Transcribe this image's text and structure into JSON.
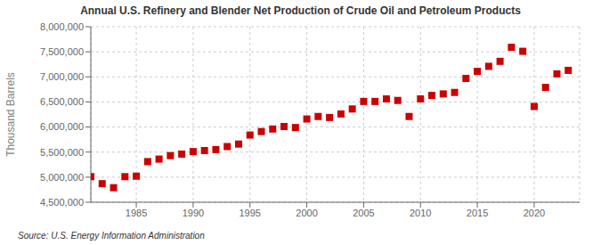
{
  "chart_data": {
    "type": "scatter",
    "title": "Annual U.S. Refinery and Blender Net Production of Crude Oil and Petroleum Products",
    "ylabel": "Thousand Barrels",
    "source": "Source: U.S. Energy Information Administration",
    "color": "#cc0000",
    "marker": "square",
    "grid": true,
    "x": [
      1981,
      1982,
      1983,
      1984,
      1985,
      1986,
      1987,
      1988,
      1989,
      1990,
      1991,
      1992,
      1993,
      1994,
      1995,
      1996,
      1997,
      1998,
      1999,
      2000,
      2001,
      2002,
      2003,
      2004,
      2005,
      2006,
      2007,
      2008,
      2009,
      2010,
      2011,
      2012,
      2013,
      2014,
      2015,
      2016,
      2017,
      2018,
      2019,
      2020,
      2021,
      2022,
      2023
    ],
    "values": [
      5010000,
      4870000,
      4790000,
      5010000,
      5020000,
      5310000,
      5360000,
      5430000,
      5460000,
      5510000,
      5530000,
      5550000,
      5610000,
      5660000,
      5840000,
      5910000,
      5960000,
      6010000,
      5990000,
      6160000,
      6210000,
      6190000,
      6260000,
      6360000,
      6510000,
      6510000,
      6560000,
      6530000,
      6210000,
      6560000,
      6630000,
      6660000,
      6690000,
      6970000,
      7110000,
      7210000,
      7310000,
      7590000,
      7510000,
      6410000,
      6790000,
      7060000,
      7130000
    ],
    "xlim": [
      1981,
      2024
    ],
    "xticks": [
      1985,
      1990,
      1995,
      2000,
      2005,
      2010,
      2015,
      2020
    ],
    "ylim": [
      4500000,
      8000000
    ],
    "yticks": [
      {
        "value": 4500000,
        "label": "4,500,000"
      },
      {
        "value": 5000000,
        "label": "5,000,000"
      },
      {
        "value": 5500000,
        "label": "5,500,000"
      },
      {
        "value": 6000000,
        "label": "6,000,000"
      },
      {
        "value": 6500000,
        "label": "6,500,000"
      },
      {
        "value": 7000000,
        "label": "7,000,000"
      },
      {
        "value": 7500000,
        "label": "7,500,000"
      },
      {
        "value": 8000000,
        "label": "8,000,000"
      }
    ]
  }
}
